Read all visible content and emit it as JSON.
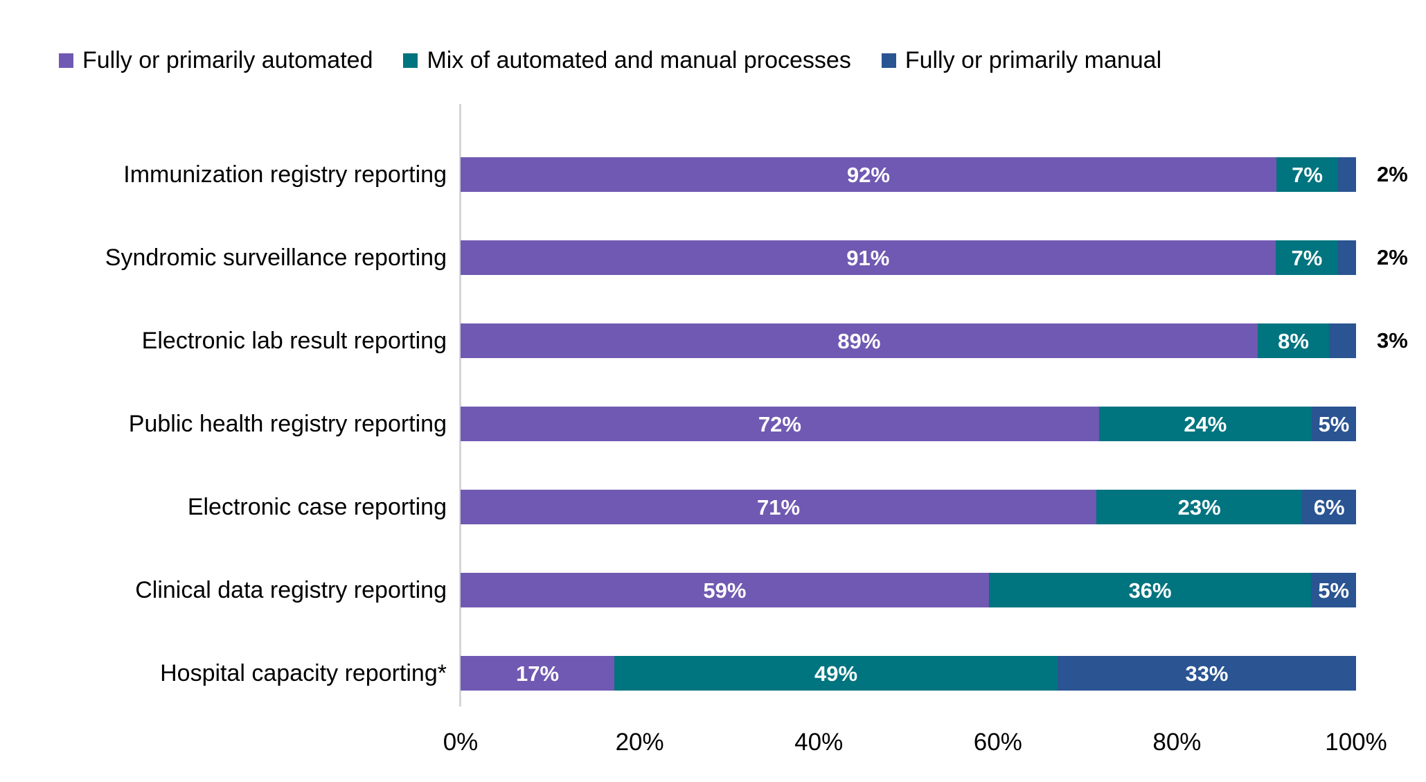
{
  "legend": {
    "items": [
      {
        "label": "Fully or primarily automated",
        "color": "#7059B2"
      },
      {
        "label": "Mix of automated and manual processes",
        "color": "#00747F"
      },
      {
        "label": "Fully or primarily manual",
        "color": "#2A5492"
      }
    ]
  },
  "chart_data": {
    "type": "bar",
    "variant": "horizontal_stacked_100pct",
    "title": "",
    "xlabel": "",
    "ylabel": "",
    "xlim": [
      0,
      100
    ],
    "grid": false,
    "legend_position": "top",
    "value_suffix": "%",
    "x_ticks": [
      "0%",
      "20%",
      "40%",
      "60%",
      "80%",
      "100%"
    ],
    "categories": [
      "Immunization registry reporting",
      "Syndromic surveillance reporting",
      "Electronic lab result reporting",
      "Public health registry reporting",
      "Electronic case reporting",
      "Clinical data registry reporting",
      "Hospital capacity reporting*"
    ],
    "series": [
      {
        "name": "Fully or primarily automated",
        "color": "#7059B2",
        "values": [
          92,
          91,
          89,
          72,
          71,
          59,
          17
        ]
      },
      {
        "name": "Mix of automated and manual processes",
        "color": "#00747F",
        "values": [
          7,
          7,
          8,
          24,
          23,
          36,
          49
        ]
      },
      {
        "name": "Fully or primarily manual",
        "color": "#2A5492",
        "values": [
          2,
          2,
          3,
          5,
          6,
          5,
          33
        ]
      }
    ]
  }
}
